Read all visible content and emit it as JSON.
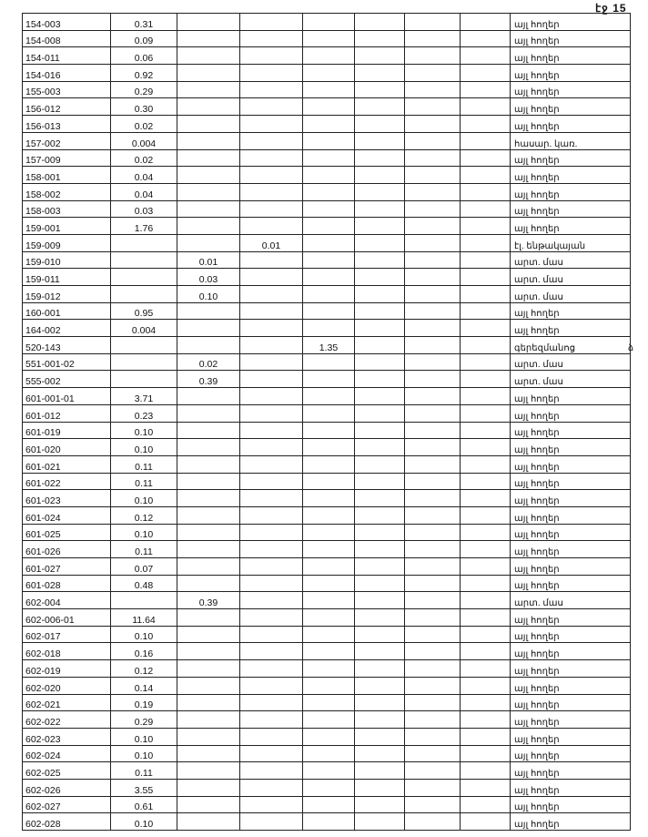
{
  "page_number": "էջ 15",
  "margin_note": "ձ",
  "rows": [
    {
      "id": "154-003",
      "col": 1,
      "value": "0.31",
      "label": "այլ հողեր"
    },
    {
      "id": "154-008",
      "col": 1,
      "value": "0.09",
      "label": "այլ հողեր"
    },
    {
      "id": "154-011",
      "col": 1,
      "value": "0.06",
      "label": "այլ հողեր"
    },
    {
      "id": "154-016",
      "col": 1,
      "value": "0.92",
      "label": "այլ հողեր"
    },
    {
      "id": "155-003",
      "col": 1,
      "value": "0.29",
      "label": "այլ հողեր"
    },
    {
      "id": "156-012",
      "col": 1,
      "value": "0.30",
      "label": "այլ հողեր"
    },
    {
      "id": "156-013",
      "col": 1,
      "value": "0.02",
      "label": "այլ հողեր"
    },
    {
      "id": "157-002",
      "col": 1,
      "value": "0.004",
      "label": "հասար. կառ."
    },
    {
      "id": "157-009",
      "col": 1,
      "value": "0.02",
      "label": "այլ հողեր"
    },
    {
      "id": "158-001",
      "col": 1,
      "value": "0.04",
      "label": "այլ հողեր"
    },
    {
      "id": "158-002",
      "col": 1,
      "value": "0.04",
      "label": "այլ հողեր"
    },
    {
      "id": "158-003",
      "col": 1,
      "value": "0.03",
      "label": "այլ հողեր"
    },
    {
      "id": "159-001",
      "col": 1,
      "value": "1.76",
      "label": "այլ հողեր"
    },
    {
      "id": "159-009",
      "col": 3,
      "value": "0.01",
      "label": "էլ. ենթակայան"
    },
    {
      "id": "159-010",
      "col": 2,
      "value": "0.01",
      "label": "արտ. մաս"
    },
    {
      "id": "159-011",
      "col": 2,
      "value": "0.03",
      "label": "արտ. մաս"
    },
    {
      "id": "159-012",
      "col": 2,
      "value": "0.10",
      "label": "արտ. մաս"
    },
    {
      "id": "160-001",
      "col": 1,
      "value": "0.95",
      "label": "այլ հողեր"
    },
    {
      "id": "164-002",
      "col": 1,
      "value": "0.004",
      "label": "այլ հողեր"
    },
    {
      "id": "520-143",
      "col": 4,
      "value": "1.35",
      "label": "գերեզմանոց"
    },
    {
      "id": "551-001-02",
      "col": 2,
      "value": "0.02",
      "label": "արտ. մաս"
    },
    {
      "id": "555-002",
      "col": 2,
      "value": "0.39",
      "label": "արտ. մաս"
    },
    {
      "id": "601-001-01",
      "col": 1,
      "value": "3.71",
      "label": "այլ հողեր"
    },
    {
      "id": "601-012",
      "col": 1,
      "value": "0.23",
      "label": "այլ հողեր"
    },
    {
      "id": "601-019",
      "col": 1,
      "value": "0.10",
      "label": "այլ հողեր"
    },
    {
      "id": "601-020",
      "col": 1,
      "value": "0.10",
      "label": "այլ հողեր"
    },
    {
      "id": "601-021",
      "col": 1,
      "value": "0.11",
      "label": "այլ հողեր"
    },
    {
      "id": "601-022",
      "col": 1,
      "value": "0.11",
      "label": "այլ հողեր"
    },
    {
      "id": "601-023",
      "col": 1,
      "value": "0.10",
      "label": "այլ հողեր"
    },
    {
      "id": "601-024",
      "col": 1,
      "value": "0.12",
      "label": "այլ հողեր"
    },
    {
      "id": "601-025",
      "col": 1,
      "value": "0.10",
      "label": "այլ հողեր"
    },
    {
      "id": "601-026",
      "col": 1,
      "value": "0.11",
      "label": "այլ հողեր"
    },
    {
      "id": "601-027",
      "col": 1,
      "value": "0.07",
      "label": "այլ հողեր"
    },
    {
      "id": "601-028",
      "col": 1,
      "value": "0.48",
      "label": "այլ հողեր"
    },
    {
      "id": "602-004",
      "col": 2,
      "value": "0.39",
      "label": "արտ. մաս"
    },
    {
      "id": "602-006-01",
      "col": 1,
      "value": "11.64",
      "label": "այլ հողեր"
    },
    {
      "id": "602-017",
      "col": 1,
      "value": "0.10",
      "label": "այլ հողեր"
    },
    {
      "id": "602-018",
      "col": 1,
      "value": "0.16",
      "label": "այլ հողեր"
    },
    {
      "id": "602-019",
      "col": 1,
      "value": "0.12",
      "label": "այլ հողեր"
    },
    {
      "id": "602-020",
      "col": 1,
      "value": "0.14",
      "label": "այլ հողեր"
    },
    {
      "id": "602-021",
      "col": 1,
      "value": "0.19",
      "label": "այլ հողեր"
    },
    {
      "id": "602-022",
      "col": 1,
      "value": "0.29",
      "label": "այլ հողեր"
    },
    {
      "id": "602-023",
      "col": 1,
      "value": "0.10",
      "label": "այլ հողեր"
    },
    {
      "id": "602-024",
      "col": 1,
      "value": "0.10",
      "label": "այլ հողեր"
    },
    {
      "id": "602-025",
      "col": 1,
      "value": "0.11",
      "label": "այլ հողեր"
    },
    {
      "id": "602-026",
      "col": 1,
      "value": "3.55",
      "label": "այլ հողեր"
    },
    {
      "id": "602-027",
      "col": 1,
      "value": "0.61",
      "label": "այլ հողեր"
    },
    {
      "id": "602-028",
      "col": 1,
      "value": "0.10",
      "label": "այլ հողեր"
    }
  ]
}
